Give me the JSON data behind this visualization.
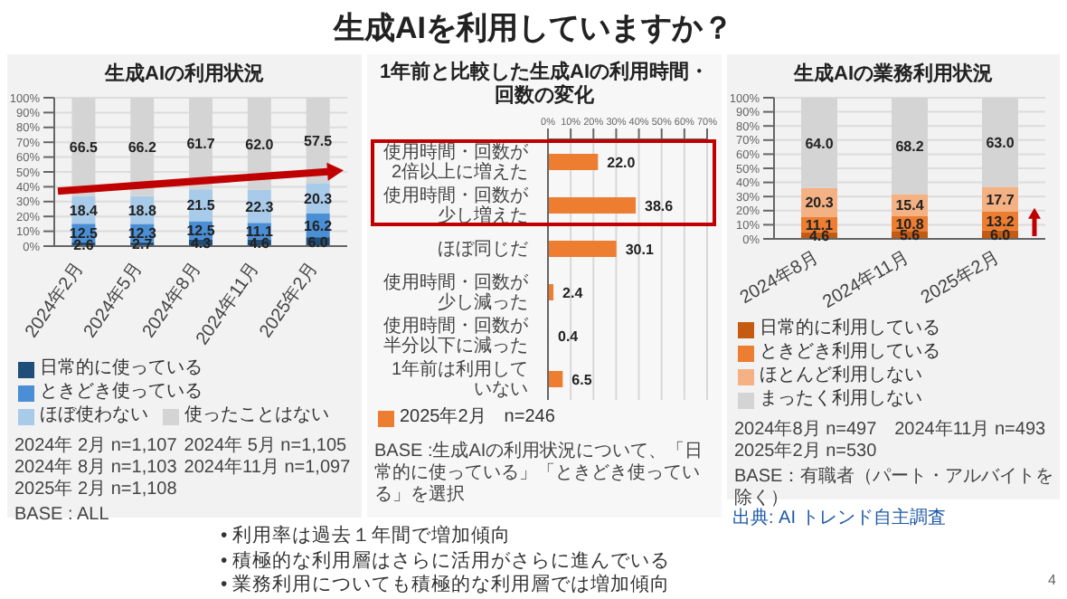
{
  "chart_data": [
    {
      "type": "bar",
      "title": "生成AIの利用状況",
      "stacked": true,
      "categories": [
        "2024年2月",
        "2024年5月",
        "2024年8月",
        "2024年11月",
        "2025年2月"
      ],
      "series": [
        {
          "name": "日常的に使っている",
          "color": "#1f4e79",
          "values": [
            2.6,
            2.7,
            4.3,
            4.6,
            6.0
          ],
          "value_labels": [
            "2.6",
            "2.7",
            "4.3",
            "4.6",
            "6.0"
          ]
        },
        {
          "name": "ときどき使っている",
          "color": "#4a8fd6",
          "values": [
            12.5,
            12.3,
            12.5,
            11.1,
            16.2
          ],
          "value_labels": [
            "12.5",
            "12.3",
            "12.5",
            "11.1",
            "16.2"
          ]
        },
        {
          "name": "ほぼ使わない",
          "color": "#a9cbea",
          "values": [
            18.4,
            18.8,
            21.5,
            22.3,
            20.3
          ],
          "value_labels": [
            "18.4",
            "18.8",
            "21.5",
            "22.3",
            "20.3"
          ]
        },
        {
          "name": "使ったことはない",
          "color": "#d4d4d4",
          "values": [
            66.5,
            66.2,
            61.7,
            62.0,
            57.5
          ],
          "value_labels": [
            "66.5",
            "66.2",
            "61.7",
            "62.0",
            "57.5"
          ]
        }
      ],
      "ylim": [
        0,
        100
      ],
      "yticks": [
        {
          "value": 0,
          "label": "0%"
        },
        {
          "value": 10,
          "label": "10%"
        },
        {
          "value": 20,
          "label": "20%"
        },
        {
          "value": 30,
          "label": "30%"
        },
        {
          "value": 40,
          "label": "40%"
        },
        {
          "value": 50,
          "label": "50%"
        },
        {
          "value": 60,
          "label": "60%"
        },
        {
          "value": 70,
          "label": "70%"
        },
        {
          "value": 80,
          "label": "80%"
        },
        {
          "value": 90,
          "label": "90%"
        },
        {
          "value": 100,
          "label": "100%"
        }
      ],
      "grid": "y",
      "legend": "bottom",
      "annotations": [
        "2024年 2月 n=1,107",
        "2024年 5月 n=1,105",
        "2024年 8月 n=1,103",
        "2024年11月 n=1,097",
        "2025年 2月 n=1,108",
        "BASE : ALL"
      ]
    },
    {
      "type": "bar",
      "title": "1年前と比較した生成AIの利用時間・回数の変化",
      "orientation": "horizontal",
      "categories": [
        "使用時間・回数が2倍以上に増えた",
        "使用時間・回数が少し増えた",
        "ほぼ同じだ",
        "使用時間・回数が少し減った",
        "使用時間・回数が半分以下に減った",
        "1年前は利用していない"
      ],
      "series": [
        {
          "name": "2025年2月　n=246",
          "color": "#ed7d31",
          "values": [
            22.0,
            38.6,
            30.1,
            2.4,
            0.4,
            6.5
          ],
          "value_labels": [
            "22.0",
            "38.6",
            "30.1",
            "2.4",
            "0.4",
            "6.5"
          ]
        }
      ],
      "xlim": [
        0,
        70
      ],
      "xticks": [
        {
          "value": 0,
          "label": "0%"
        },
        {
          "value": 10,
          "label": "10%"
        },
        {
          "value": 20,
          "label": "20%"
        },
        {
          "value": 30,
          "label": "30%"
        },
        {
          "value": 40,
          "label": "40%"
        },
        {
          "value": 50,
          "label": "50%"
        },
        {
          "value": 60,
          "label": "60%"
        },
        {
          "value": 70,
          "label": "70%"
        }
      ],
      "grid": "x",
      "legend": "bottom",
      "annotations": [
        "BASE :生成AIの利用状況について、「日常的に使っている」「ときどき使っている」を選択"
      ]
    },
    {
      "type": "bar",
      "title": "生成AIの業務利用状況",
      "stacked": true,
      "categories": [
        "2024年8月",
        "2024年11月",
        "2025年2月"
      ],
      "series": [
        {
          "name": "日常的に利用している",
          "color": "#c55a11",
          "values": [
            4.6,
            5.6,
            6.0
          ],
          "value_labels": [
            "4.6",
            "5.6",
            "6.0"
          ]
        },
        {
          "name": "ときどき利用している",
          "color": "#ed7d31",
          "values": [
            11.1,
            10.8,
            13.2
          ],
          "value_labels": [
            "11.1",
            "10.8",
            "13.2"
          ]
        },
        {
          "name": "ほとんど利用しない",
          "color": "#f4b183",
          "values": [
            20.3,
            15.4,
            17.7
          ],
          "value_labels": [
            "20.3",
            "15.4",
            "17.7"
          ]
        },
        {
          "name": "まったく利用しない",
          "color": "#d4d4d4",
          "values": [
            64.0,
            68.2,
            63.0
          ],
          "value_labels": [
            "64.0",
            "68.2",
            "63.0"
          ]
        }
      ],
      "ylim": [
        0,
        100
      ],
      "yticks": [
        {
          "value": 0,
          "label": "0%"
        },
        {
          "value": 10,
          "label": "10%"
        },
        {
          "value": 20,
          "label": "20%"
        },
        {
          "value": 30,
          "label": "30%"
        },
        {
          "value": 40,
          "label": "40%"
        },
        {
          "value": 50,
          "label": "50%"
        },
        {
          "value": 60,
          "label": "60%"
        },
        {
          "value": 70,
          "label": "70%"
        },
        {
          "value": 80,
          "label": "80%"
        },
        {
          "value": 90,
          "label": "90%"
        },
        {
          "value": 100,
          "label": "100%"
        }
      ],
      "grid": "y",
      "legend": "bottom",
      "annotations": [
        "2024年8月 n=497",
        "2024年11月 n=493",
        "2025年2月 n=530",
        "BASE：有職者（パート・アルバイトを除く）"
      ]
    },
    {
      "type": "other",
      "title": "生成AIを利用していますか？",
      "annotations": [
        "• 利用率は過去１年間で増加傾向",
        "• 積極的な利用層はさらに活用がさらに進んでいる",
        "• 業務利用についても積極的な利用層では増加傾向",
        "出典: AI トレンド自主調査",
        "4"
      ]
    }
  ]
}
